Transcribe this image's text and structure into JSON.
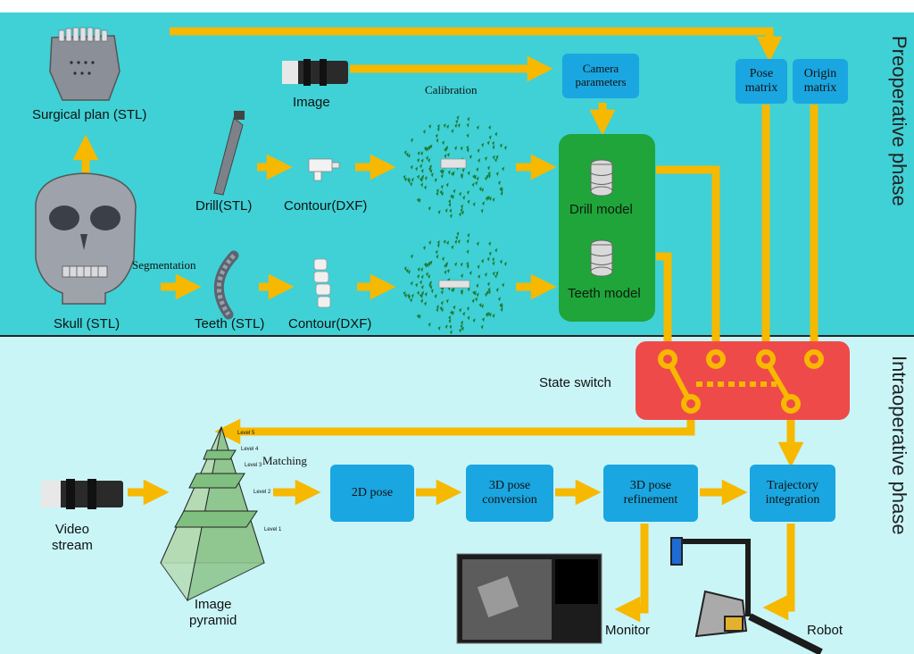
{
  "phases": {
    "preoperative": "Preoperative phase",
    "intraoperative": "Intraoperative phase"
  },
  "labels": {
    "surgical_plan": "Surgical plan (STL)",
    "skull": "Skull (STL)",
    "image": "Image",
    "drill": "Drill(STL)",
    "contour_drill": "Contour(DXF)",
    "segmentation": "Segmentation",
    "teeth": "Teeth  (STL)",
    "contour_teeth": "Contour(DXF)",
    "calibration": "Calibration",
    "drill_model": "Drill model",
    "teeth_model": "Teeth model",
    "state_switch": "State switch",
    "matching": "Matching",
    "video_stream": "Video\nstream",
    "image_pyramid": "Image\npyramid",
    "monitor": "Monitor",
    "robot": "Robot",
    "pyramid_levels": [
      "Level 5",
      "Level 4",
      "Level 3",
      "Level 2",
      "Level 1"
    ]
  },
  "boxes": {
    "camera_parameters": "Camera\nparameters",
    "pose_matrix": "Pose\nmatrix",
    "origin_matrix": "Origin\nmatrix",
    "pose_2d": "2D pose",
    "pose_3d_conversion": "3D pose\nconversion",
    "pose_3d_refinement": "3D pose\nrefinement",
    "trajectory_integration": "Trajectory\nintegration"
  },
  "colors": {
    "preop_bg": "#3fd1d6",
    "intraop_bg": "#c9f5f7",
    "arrow": "#f7b800",
    "box": "#1aa6e0",
    "model_box": "#1fa53a",
    "switch": "#ef4a4a"
  }
}
